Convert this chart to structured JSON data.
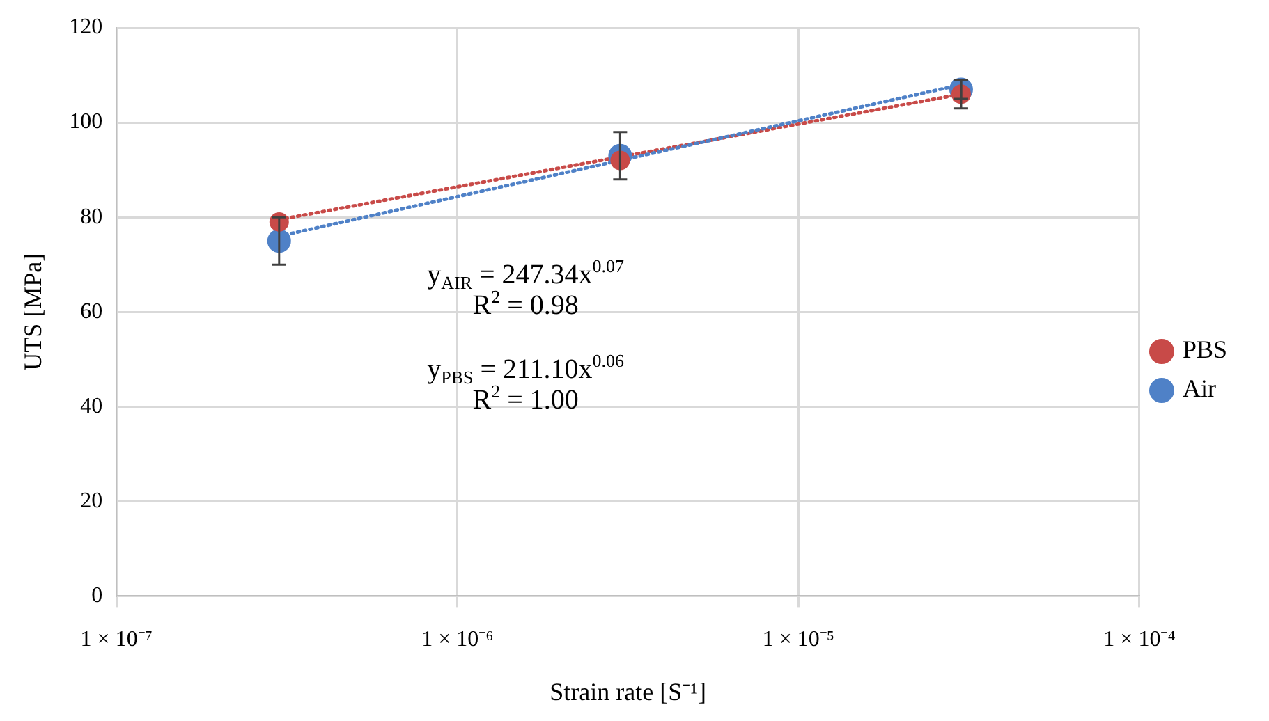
{
  "chart_data": {
    "type": "scatter",
    "xlabel": "Strain rate [S⁻¹]",
    "ylabel": "UTS [MPa]",
    "log": "x",
    "xlim": [
      1e-07,
      0.0001
    ],
    "xticks": [
      {
        "value": 1e-07,
        "label": "1 × 10⁻⁷"
      },
      {
        "value": 1e-06,
        "label": "1 × 10⁻⁶"
      },
      {
        "value": 1e-05,
        "label": "1 × 10⁻⁵"
      },
      {
        "value": 0.0001,
        "label": "1 × 10⁻⁴"
      }
    ],
    "ylim": [
      0,
      120
    ],
    "yticks": [
      0,
      20,
      40,
      60,
      80,
      100,
      120
    ],
    "grid": true,
    "legend": "right",
    "marker": "circle",
    "series": [
      {
        "type": "line",
        "color": "#4f81c7",
        "x": [
          3e-07,
          3e-05
        ],
        "values": [
          76,
          108
        ],
        "line_style": "dotted",
        "marker": "none"
      },
      {
        "type": "line",
        "color": "#c84a48",
        "x": [
          3e-07,
          3e-05
        ],
        "values": [
          79.5,
          106
        ],
        "line_style": "dotted",
        "marker": "none"
      },
      {
        "name": "Air",
        "color": "#4f81c7",
        "x": [
          3e-07,
          3e-06,
          3e-05
        ],
        "values": [
          75,
          93,
          107
        ],
        "errors": [
          5,
          5,
          2
        ]
      },
      {
        "name": "PBS",
        "color": "#c84a48",
        "x": [
          3e-07,
          3e-06,
          3e-05
        ],
        "values": [
          79,
          92,
          106
        ],
        "errors": [
          null,
          null,
          3
        ]
      }
    ],
    "annotations": [
      "y$_{AIR}$ = 247.34x$^{0.07}$",
      "R$^{2}$ = 0.98",
      "y$_{PBS}$ = 211.10x$^{0.06}$",
      "R$^{2}$ = 1.00"
    ]
  }
}
